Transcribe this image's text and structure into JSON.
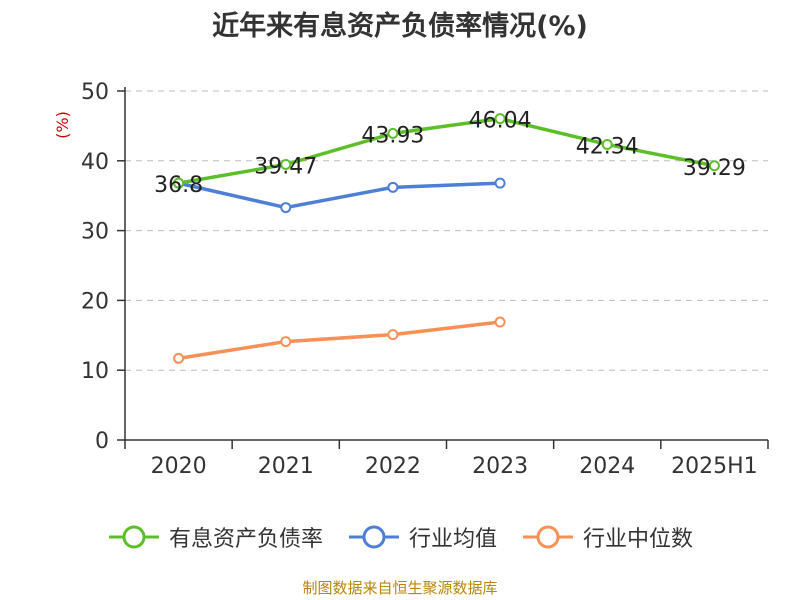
{
  "colors": {
    "series_1": "#5cbf2a",
    "series_2": "#4e7fd6",
    "series_3": "#f79057",
    "y_unit": "#cc0000",
    "source": "#b8860b"
  },
  "source_text": "制图数据来自恒生聚源数据库",
  "chart_data": {
    "type": "line",
    "title": "近年来有息资产负债率情况(%)",
    "xlabel": "",
    "ylabel": "(%)",
    "categories": [
      "2020",
      "2021",
      "2022",
      "2023",
      "2024",
      "2025H1"
    ],
    "ylim": [
      0,
      50
    ],
    "yticks": [
      0,
      10,
      20,
      30,
      40,
      50
    ],
    "grid": true,
    "legend_position": "bottom",
    "series": [
      {
        "name": "有息资产负债率",
        "values": [
          36.8,
          39.47,
          43.93,
          46.04,
          42.34,
          39.29
        ],
        "data_labels": [
          "36.8",
          "39.47",
          "43.93",
          "46.04",
          "42.34",
          "39.29"
        ]
      },
      {
        "name": "行业均值",
        "values": [
          36.8,
          33.3,
          36.2,
          36.8,
          null,
          null
        ]
      },
      {
        "name": "行业中位数",
        "values": [
          11.7,
          14.1,
          15.1,
          16.9,
          null,
          null
        ]
      }
    ]
  }
}
